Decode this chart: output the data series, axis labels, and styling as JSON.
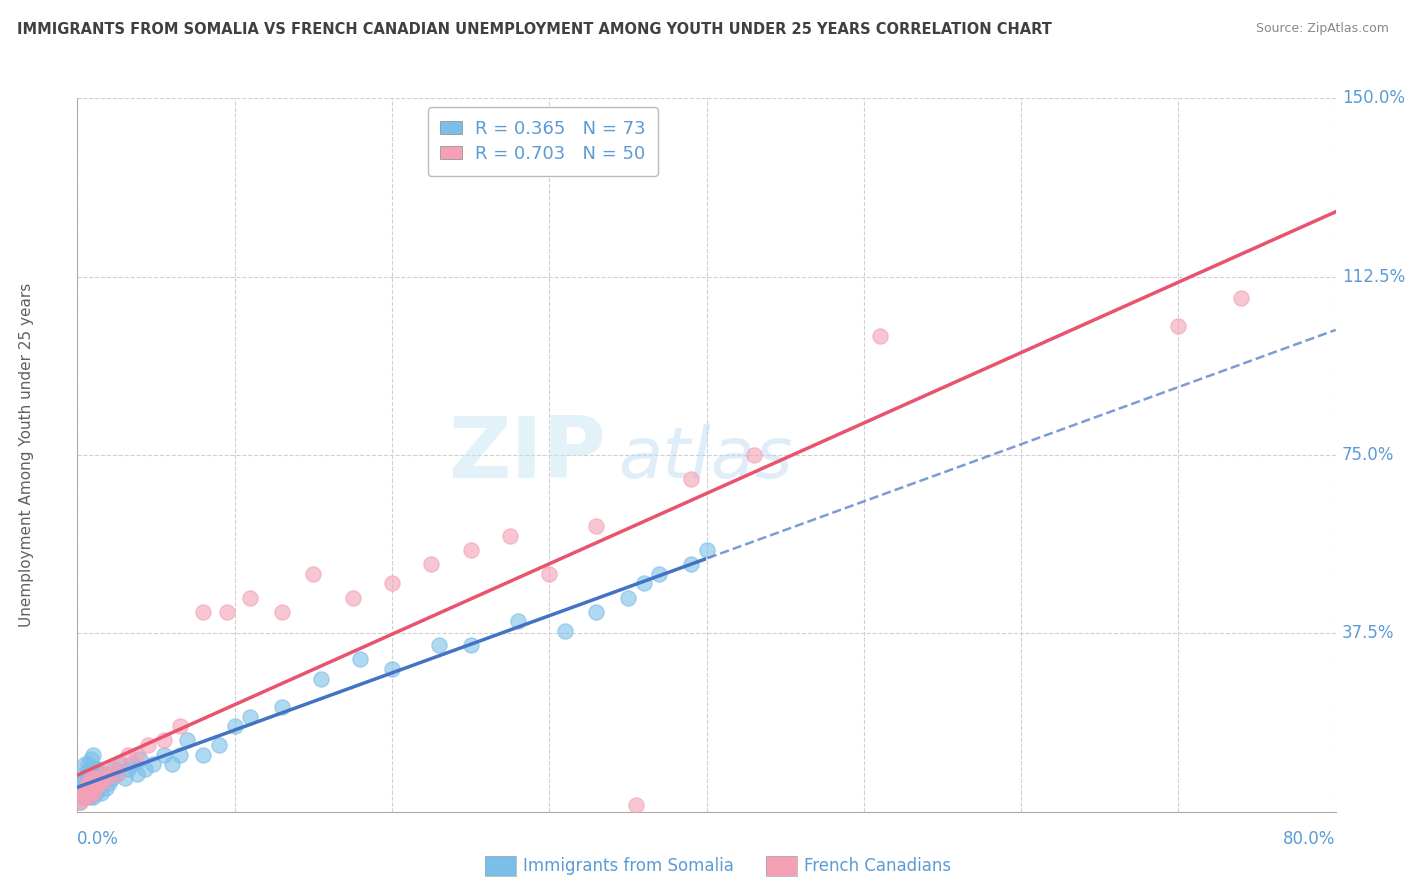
{
  "title": "IMMIGRANTS FROM SOMALIA VS FRENCH CANADIAN UNEMPLOYMENT AMONG YOUTH UNDER 25 YEARS CORRELATION CHART",
  "source": "Source: ZipAtlas.com",
  "ylabel": "Unemployment Among Youth under 25 years",
  "xlim": [
    0.0,
    0.8
  ],
  "ylim": [
    0.0,
    1.5
  ],
  "xticks": [
    0.0,
    0.1,
    0.2,
    0.3,
    0.4,
    0.5,
    0.6,
    0.7,
    0.8
  ],
  "yticks": [
    0.0,
    0.375,
    0.75,
    1.125,
    1.5
  ],
  "yticklabels": [
    "",
    "37.5%",
    "75.0%",
    "112.5%",
    "150.0%"
  ],
  "series1_label": "Immigrants from Somalia",
  "series1_color": "#7bbee8",
  "series1_line_color": "#4472c4",
  "series1_R": 0.365,
  "series1_N": 73,
  "series2_label": "French Canadians",
  "series2_color": "#f4a0b5",
  "series2_line_color": "#e8536e",
  "series2_R": 0.703,
  "series2_N": 50,
  "background_color": "#ffffff",
  "grid_color": "#d0d0d0",
  "tick_color": "#5b9bd5",
  "title_color": "#404040",
  "watermark_zip": "ZIP",
  "watermark_atlas": "atlas",
  "series1_x": [
    0.002,
    0.003,
    0.003,
    0.004,
    0.004,
    0.004,
    0.005,
    0.005,
    0.005,
    0.005,
    0.006,
    0.006,
    0.006,
    0.007,
    0.007,
    0.007,
    0.008,
    0.008,
    0.008,
    0.009,
    0.009,
    0.009,
    0.01,
    0.01,
    0.01,
    0.01,
    0.011,
    0.011,
    0.012,
    0.012,
    0.013,
    0.013,
    0.014,
    0.015,
    0.015,
    0.016,
    0.017,
    0.018,
    0.019,
    0.02,
    0.022,
    0.023,
    0.025,
    0.027,
    0.03,
    0.032,
    0.035,
    0.038,
    0.04,
    0.043,
    0.048,
    0.055,
    0.06,
    0.065,
    0.07,
    0.08,
    0.09,
    0.1,
    0.11,
    0.13,
    0.155,
    0.18,
    0.2,
    0.23,
    0.25,
    0.28,
    0.31,
    0.33,
    0.35,
    0.36,
    0.37,
    0.39,
    0.4
  ],
  "series1_y": [
    0.02,
    0.03,
    0.05,
    0.04,
    0.06,
    0.08,
    0.03,
    0.05,
    0.07,
    0.1,
    0.04,
    0.06,
    0.08,
    0.04,
    0.07,
    0.1,
    0.03,
    0.06,
    0.09,
    0.04,
    0.07,
    0.11,
    0.03,
    0.05,
    0.08,
    0.12,
    0.05,
    0.09,
    0.04,
    0.08,
    0.05,
    0.09,
    0.06,
    0.04,
    0.08,
    0.06,
    0.07,
    0.05,
    0.08,
    0.06,
    0.07,
    0.09,
    0.08,
    0.1,
    0.07,
    0.09,
    0.1,
    0.08,
    0.11,
    0.09,
    0.1,
    0.12,
    0.1,
    0.12,
    0.15,
    0.12,
    0.14,
    0.18,
    0.2,
    0.22,
    0.28,
    0.32,
    0.3,
    0.35,
    0.35,
    0.4,
    0.38,
    0.42,
    0.45,
    0.48,
    0.5,
    0.52,
    0.55
  ],
  "series2_x": [
    0.002,
    0.003,
    0.004,
    0.005,
    0.005,
    0.006,
    0.006,
    0.007,
    0.007,
    0.008,
    0.008,
    0.009,
    0.009,
    0.01,
    0.01,
    0.011,
    0.012,
    0.013,
    0.014,
    0.015,
    0.016,
    0.017,
    0.018,
    0.02,
    0.022,
    0.025,
    0.028,
    0.032,
    0.038,
    0.045,
    0.055,
    0.065,
    0.08,
    0.095,
    0.11,
    0.13,
    0.15,
    0.175,
    0.2,
    0.225,
    0.25,
    0.275,
    0.3,
    0.33,
    0.355,
    0.39,
    0.43,
    0.51,
    0.7,
    0.74
  ],
  "series2_y": [
    0.02,
    0.03,
    0.03,
    0.04,
    0.05,
    0.03,
    0.05,
    0.04,
    0.06,
    0.04,
    0.06,
    0.05,
    0.07,
    0.04,
    0.07,
    0.05,
    0.06,
    0.06,
    0.07,
    0.06,
    0.07,
    0.08,
    0.07,
    0.08,
    0.09,
    0.08,
    0.1,
    0.12,
    0.12,
    0.14,
    0.15,
    0.18,
    0.42,
    0.42,
    0.45,
    0.42,
    0.5,
    0.45,
    0.48,
    0.52,
    0.55,
    0.58,
    0.5,
    0.6,
    0.015,
    0.7,
    0.75,
    1.0,
    1.02,
    1.08
  ]
}
